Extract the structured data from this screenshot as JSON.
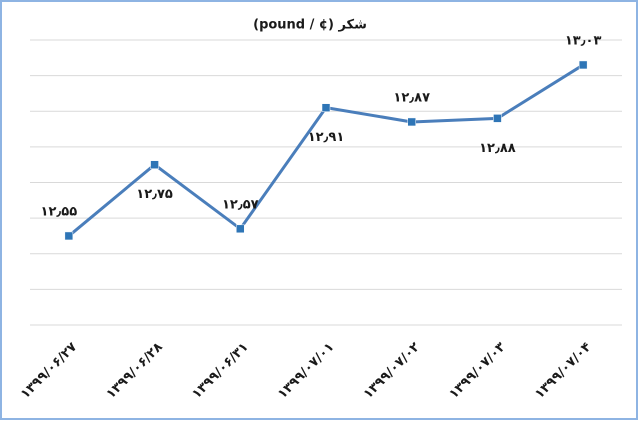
{
  "chart_data": {
    "type": "line",
    "title": "شکر  (¢ / pound)",
    "categories": [
      "۱۳۹۹/۰۶/۲۷",
      "۱۳۹۹/۰۶/۲۸",
      "۱۳۹۹/۰۶/۳۱",
      "۱۳۹۹/۰۷/۰۱",
      "۱۳۹۹/۰۷/۰۲",
      "۱۳۹۹/۰۷/۰۳",
      "۱۳۹۹/۰۷/۰۴"
    ],
    "values": [
      12.55,
      12.75,
      12.57,
      12.91,
      12.87,
      12.88,
      13.03
    ],
    "value_labels": [
      "۱۲٫۵۵",
      "۱۲٫۷۵",
      "۱۲٫۵۷",
      "۱۲٫۹۱",
      "۱۲٫۸۷",
      "۱۲٫۸۸",
      "۱۳٫۰۳"
    ],
    "color": "#4a7ebb",
    "marker_color": "#2e75b6",
    "ylim": [
      12.3,
      13.1
    ],
    "yticks": [
      12.3,
      12.4,
      12.5,
      12.6,
      12.7,
      12.8,
      12.9,
      13.0,
      13.1
    ],
    "grid": true
  }
}
